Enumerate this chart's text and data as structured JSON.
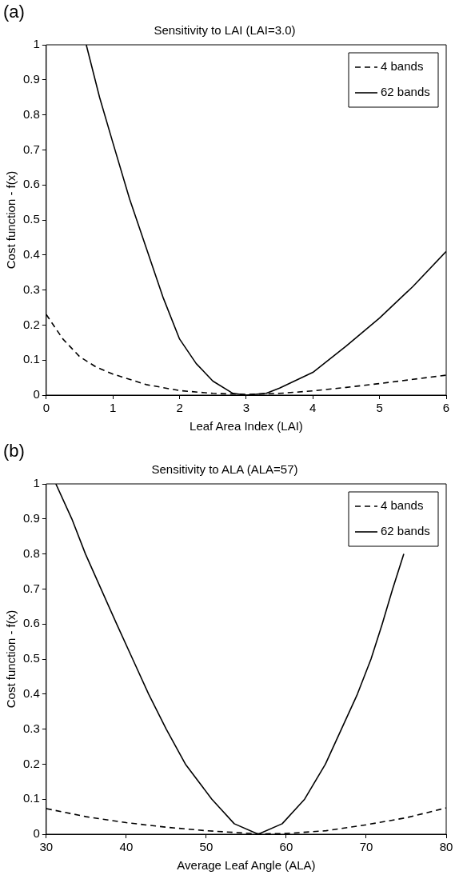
{
  "chart_data": [
    {
      "type": "line",
      "title": "Sensitivity to LAI (LAI=3.0)",
      "xlabel": "Leaf Area Index (LAI)",
      "ylabel": "Cost function - f(x)",
      "annotations": [
        "(a)"
      ],
      "xlim": [
        0,
        6
      ],
      "xticks": [
        0,
        1,
        2,
        3,
        4,
        5,
        6
      ],
      "ylim": [
        0,
        1
      ],
      "yticks": [
        0,
        0.1,
        0.2,
        0.3,
        0.4,
        0.5,
        0.6,
        0.7,
        0.8,
        0.9,
        1
      ],
      "legend": "top right",
      "series": [
        {
          "name": "4 bands",
          "color": "#000000",
          "line_style": "dashed",
          "x": [
            0,
            0.25,
            0.5,
            0.75,
            1,
            1.5,
            2,
            2.5,
            3,
            3.5,
            4,
            4.5,
            5,
            5.5,
            6
          ],
          "values": [
            0.23,
            0.16,
            0.11,
            0.08,
            0.06,
            0.03,
            0.013,
            0.005,
            0.002,
            0.005,
            0.012,
            0.022,
            0.033,
            0.045,
            0.057
          ]
        },
        {
          "name": "62 bands",
          "color": "#000000",
          "line_style": "solid",
          "x": [
            0.6,
            0.8,
            1,
            1.25,
            1.5,
            1.75,
            2,
            2.25,
            2.5,
            2.8,
            3,
            3.3,
            3.5,
            4,
            4.5,
            5,
            5.5,
            6
          ],
          "values": [
            1,
            0.85,
            0.72,
            0.56,
            0.42,
            0.28,
            0.16,
            0.09,
            0.04,
            0.005,
            0,
            0.005,
            0.02,
            0.065,
            0.14,
            0.22,
            0.31,
            0.41
          ]
        }
      ]
    },
    {
      "type": "line",
      "title": "Sensitivity to ALA (ALA=57)",
      "xlabel": "Average Leaf Angle (ALA)",
      "ylabel": "Cost function - f(x)",
      "annotations": [
        "(b)"
      ],
      "xlim": [
        30,
        80
      ],
      "xticks": [
        30,
        40,
        50,
        60,
        70,
        80
      ],
      "ylim": [
        0,
        1
      ],
      "yticks": [
        0,
        0.1,
        0.2,
        0.3,
        0.4,
        0.5,
        0.6,
        0.7,
        0.8,
        0.9,
        1
      ],
      "legend": "top right",
      "series": [
        {
          "name": "4 bands",
          "color": "#000000",
          "line_style": "dashed",
          "x": [
            30,
            35,
            40,
            45,
            50,
            55,
            57,
            60,
            65,
            70,
            75,
            80
          ],
          "values": [
            0.073,
            0.05,
            0.033,
            0.02,
            0.01,
            0.003,
            0.001,
            0.002,
            0.01,
            0.027,
            0.047,
            0.075
          ]
        },
        {
          "name": "62 bands",
          "color": "#000000",
          "line_style": "solid",
          "x": [
            31.2,
            33.2,
            34.9,
            38.8,
            40.8,
            42.8,
            45,
            47.4,
            50.7,
            53.5,
            56.5,
            59.5,
            62.3,
            64.9,
            66.9,
            68.9,
            70.6,
            72,
            73.3,
            74.7
          ],
          "values": [
            1,
            0.9,
            0.8,
            0.6,
            0.5,
            0.4,
            0.3,
            0.2,
            0.1,
            0.03,
            0,
            0.03,
            0.1,
            0.2,
            0.3,
            0.4,
            0.5,
            0.6,
            0.7,
            0.8
          ]
        }
      ]
    }
  ]
}
